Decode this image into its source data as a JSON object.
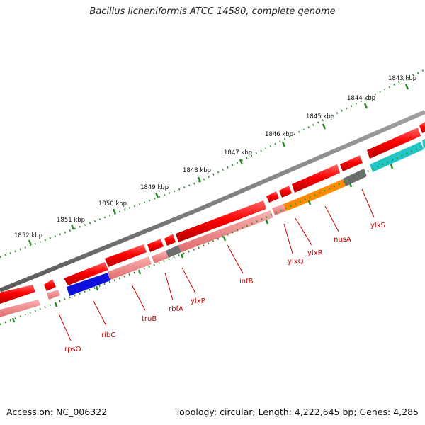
{
  "title": "Bacillus licheniformis ATCC 14580, complete genome",
  "accession": "Accession: NC_006322",
  "summary": "Topology: circular; Length: 4,222,645 bp; Genes: 4,285",
  "kbp_labels": [
    "1843 kbp",
    "1844 kbp",
    "1845 kbp",
    "1846 kbp",
    "1847 kbp",
    "1848 kbp",
    "1849 kbp",
    "1850 kbp",
    "1851 kbp",
    "1852 kbp"
  ],
  "gene_labels": [
    "ylxS",
    "nusA",
    "ylxR",
    "ylxQ",
    "infB",
    "ylxP",
    "rbfA",
    "truB",
    "ribC",
    "rpsO"
  ],
  "colors": {
    "backbone": "#7f7f7f",
    "forward_arrow": "#ff0000",
    "feature_pink": "#f08080",
    "feature_orange": "#ff8c00",
    "feature_gray": "#6e6e6e",
    "feature_blue": "#1010dd",
    "feature_cyan": "#20c6c6",
    "tick": "#2a8a2a",
    "label": "#cc0000"
  }
}
